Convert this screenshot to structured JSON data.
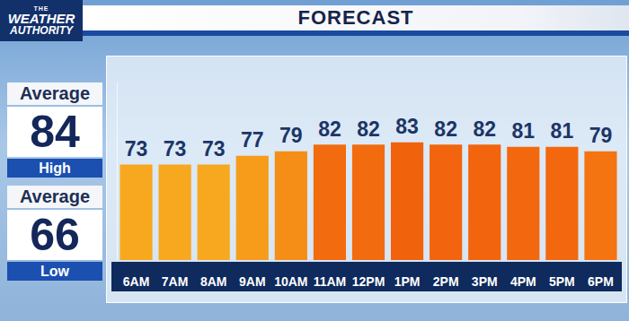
{
  "header": {
    "logo": [
      "THE",
      "WEATHER",
      "AUTHORITY"
    ]
  },
  "panels": [
    {
      "label": "Average",
      "value": 84,
      "caption": "High"
    },
    {
      "label": "Average",
      "value": 66,
      "caption": "Low"
    }
  ],
  "chart_data": {
    "type": "bar",
    "title": "FORECAST",
    "categories": [
      "6AM",
      "7AM",
      "8AM",
      "9AM",
      "10AM",
      "11AM",
      "12PM",
      "1PM",
      "2PM",
      "3PM",
      "4PM",
      "5PM",
      "6PM"
    ],
    "values": [
      73,
      73,
      73,
      77,
      79,
      82,
      82,
      83,
      82,
      82,
      81,
      81,
      79
    ],
    "colors": [
      "#f7a81e",
      "#f7a81e",
      "#f7a81e",
      "#f69c1a",
      "#f58e17",
      "#f26c0f",
      "#f26c0f",
      "#f0620c",
      "#f2640d",
      "#f2640d",
      "#f3680e",
      "#f3680e",
      "#f47411"
    ],
    "ylim": [
      30,
      110
    ],
    "data_labels": true,
    "tick_labels": "x",
    "grid": false
  }
}
